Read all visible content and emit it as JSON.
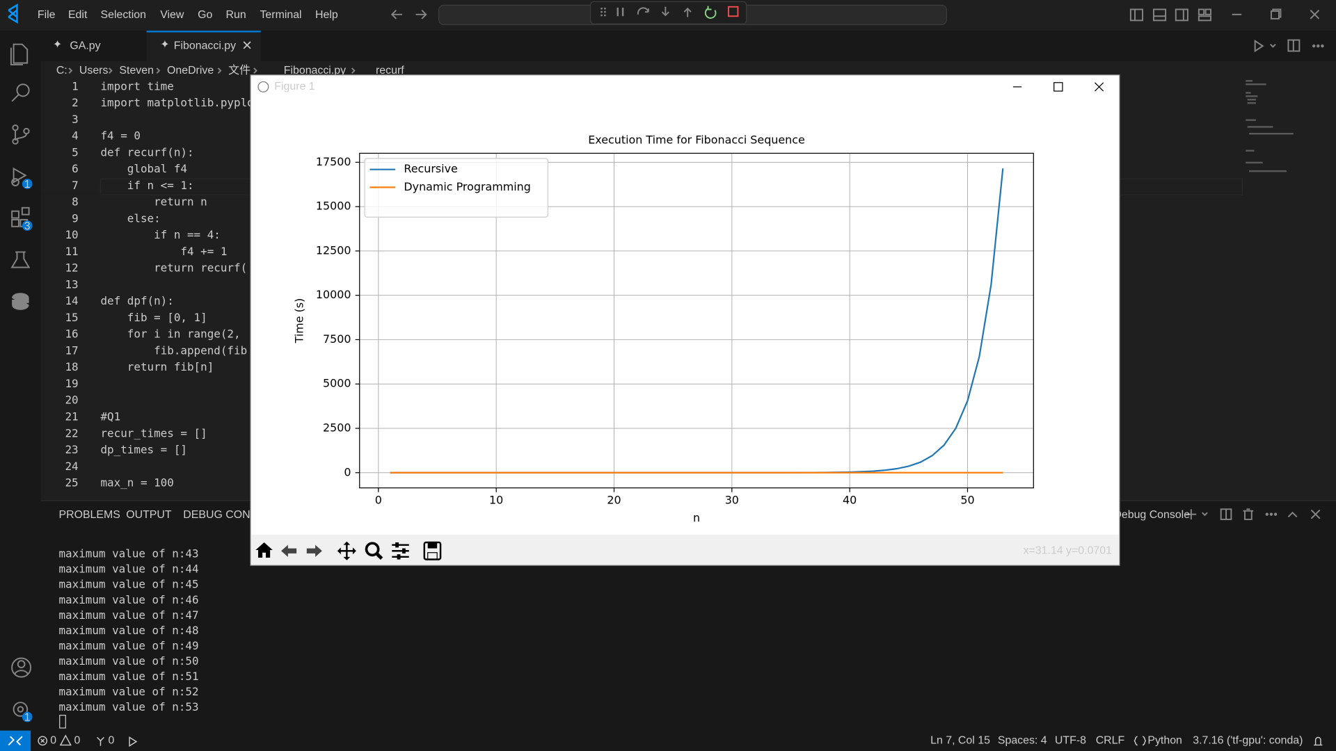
{
  "menu": [
    "File",
    "Edit",
    "Selection",
    "View",
    "Go",
    "Run",
    "Terminal",
    "Help"
  ],
  "tabs": [
    "GA.py",
    "Fibonacci.py"
  ],
  "breadcrumb": [
    "C:",
    "Users",
    "Steven",
    "OneDrive",
    "文件",
    "Fibonacci.py",
    "recurf"
  ],
  "badges": {
    "run_debug": 1,
    "extensions": 3,
    "manage": 1
  },
  "code": [
    {
      "n": 1,
      "text": "import time"
    },
    {
      "n": 2,
      "text": "import matplotlib.pyplo"
    },
    {
      "n": 3
    },
    {
      "n": 4,
      "text": "f4 = 0"
    },
    {
      "n": 5,
      "text": "def recurf(n):"
    },
    {
      "n": 6,
      "text": "    global f4"
    },
    {
      "n": 7,
      "text": "    if n <= 1:"
    },
    {
      "n": 8,
      "text": "        return n"
    },
    {
      "n": 9,
      "text": "    else:"
    },
    {
      "n": 10,
      "text": "        if n == 4:"
    },
    {
      "n": 11,
      "text": "            f4 += 1"
    },
    {
      "n": 12,
      "text": "        return recurf("
    },
    {
      "n": 13
    },
    {
      "n": 14,
      "text": "def dpf(n):"
    },
    {
      "n": 15,
      "text": "    fib = [0, 1]"
    },
    {
      "n": 16,
      "text": "    for i in range(2, "
    },
    {
      "n": 17,
      "text": "        fib.append(fib"
    },
    {
      "n": 18,
      "text": "    return fib[n]"
    },
    {
      "n": 19
    },
    {
      "n": 20
    },
    {
      "n": 21,
      "text": "#Q1"
    },
    {
      "n": 22,
      "text": "recur_times = []"
    },
    {
      "n": 23,
      "text": "dp_times = []"
    },
    {
      "n": 24
    },
    {
      "n": 25,
      "text": "max_n = 100"
    }
  ],
  "panel_tabs": [
    "PROBLEMS",
    "OUTPUT",
    "DEBUG CONSOLE"
  ],
  "panel_dropdown": "Debug Console",
  "terminal": [
    "maximum value of n:43",
    "maximum value of n:44",
    "maximum value of n:45",
    "maximum value of n:46",
    "maximum value of n:47",
    "maximum value of n:48",
    "maximum value of n:49",
    "maximum value of n:50",
    "maximum value of n:51",
    "maximum value of n:52",
    "maximum value of n:53"
  ],
  "status": {
    "errors": 0,
    "warnings": 0,
    "ports": 0,
    "position": "Ln 7, Col 15",
    "spaces": "Spaces: 4",
    "encoding": "UTF-8",
    "eol": "CRLF",
    "language": "Python",
    "interpreter": "3.7.16 ('tf-gpu': conda)"
  },
  "figure": {
    "title": "Figure 1",
    "coords": "x=31.14 y=0.0701"
  },
  "chart_data": {
    "type": "line",
    "title": "Execution Time for Fibonacci Sequence",
    "xlabel": "n",
    "ylabel": "Time (s)",
    "x": [
      1,
      2,
      3,
      4,
      5,
      6,
      7,
      8,
      9,
      10,
      11,
      12,
      13,
      14,
      15,
      16,
      17,
      18,
      19,
      20,
      21,
      22,
      23,
      24,
      25,
      26,
      27,
      28,
      29,
      30,
      31,
      32,
      33,
      34,
      35,
      36,
      37,
      38,
      39,
      40,
      41,
      42,
      43,
      44,
      45,
      46,
      47,
      48,
      49,
      50,
      51,
      52,
      53
    ],
    "series": [
      {
        "name": "Recursive",
        "color": "#1f77b4",
        "values": [
          0,
          0,
          0,
          0,
          0,
          0,
          0,
          0,
          0,
          0,
          0,
          0,
          0,
          0,
          0,
          0,
          0,
          0,
          0,
          0,
          0,
          0,
          0,
          0,
          0,
          0,
          0,
          0.1,
          0.17,
          0.27,
          0.4,
          0.7,
          1.1,
          1.8,
          2.9,
          4.7,
          7.6,
          12,
          20,
          33,
          53,
          86,
          140,
          225,
          365,
          590,
          960,
          1550,
          2500,
          4050,
          6550,
          10600,
          17150
        ]
      },
      {
        "name": "Dynamic Programming",
        "color": "#ff7f0e",
        "values": [
          0,
          0,
          0,
          0,
          0,
          0,
          0,
          0,
          0,
          0,
          0,
          0,
          0,
          0,
          0,
          0,
          0,
          0,
          0,
          0,
          0,
          0,
          0,
          0,
          0,
          0,
          0,
          0,
          0,
          0,
          0,
          0,
          0,
          0,
          0,
          0,
          0,
          0,
          0,
          0,
          0,
          0,
          0,
          0,
          0,
          0,
          0,
          0,
          0,
          0,
          0,
          0,
          0
        ]
      }
    ],
    "xlim": [
      -1.6,
      55.6
    ],
    "ylim": [
      -857.5,
      18007.5
    ],
    "xticks": [
      0,
      10,
      20,
      30,
      40,
      50
    ],
    "yticks": [
      0,
      2500,
      5000,
      7500,
      10000,
      12500,
      15000,
      17500
    ],
    "grid": true,
    "legend": "upper left"
  }
}
